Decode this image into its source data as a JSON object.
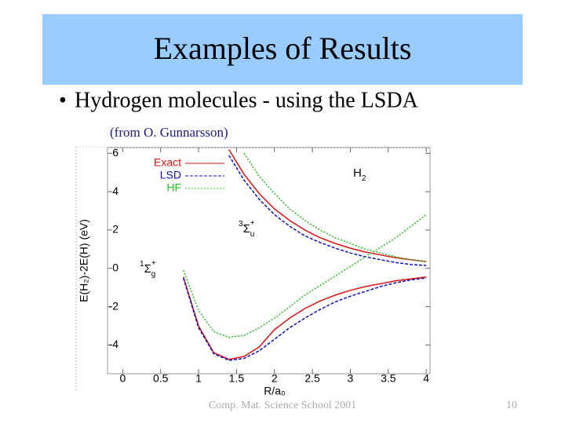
{
  "slide": {
    "title": "Examples of Results",
    "bullet": "•",
    "text": "Hydrogen molecules - using the LSDA",
    "source": "(from O. Gunnarsson)",
    "footer": "Comp. Mat. Science School 2001",
    "page": "10"
  },
  "chart_data": {
    "type": "line",
    "xlabel": "R/a₀",
    "ylabel": "E(H₂)-2E(H) (eV)",
    "annotations": [
      {
        "main": "H",
        "sub": "2"
      },
      {
        "pre": "3",
        "main": "Σ",
        "sub": "u",
        "sup": "+"
      },
      {
        "pre": "1",
        "main": "Σ",
        "sub": "g",
        "sup": "+"
      }
    ],
    "x": [
      0.8,
      1.0,
      1.2,
      1.4,
      1.6,
      1.8,
      2.0,
      2.2,
      2.4,
      2.6,
      2.8,
      3.0,
      3.2,
      3.4,
      3.6,
      3.8,
      4.0
    ],
    "series": [
      {
        "name": "Exact",
        "color": "#e01010",
        "style": "solid",
        "singlet": [
          -0.45,
          -3.0,
          -4.4,
          -4.75,
          -4.6,
          -4.1,
          -3.2,
          -2.6,
          -2.1,
          -1.7,
          -1.4,
          -1.15,
          -0.95,
          -0.8,
          -0.65,
          -0.55,
          -0.45
        ],
        "triplet": [
          null,
          null,
          null,
          6.2,
          4.9,
          3.9,
          3.1,
          2.5,
          2.0,
          1.6,
          1.3,
          1.05,
          0.85,
          0.7,
          0.55,
          0.45,
          0.35
        ]
      },
      {
        "name": "LSD",
        "color": "#1010c0",
        "style": "dashed",
        "singlet": [
          -0.5,
          -3.1,
          -4.45,
          -4.8,
          -4.7,
          -4.3,
          -3.7,
          -3.1,
          -2.6,
          -2.15,
          -1.75,
          -1.45,
          -1.2,
          -0.95,
          -0.75,
          -0.6,
          -0.5
        ],
        "triplet": [
          null,
          null,
          null,
          5.9,
          4.6,
          3.6,
          2.8,
          2.2,
          1.7,
          1.35,
          1.05,
          0.8,
          0.6,
          0.45,
          0.3,
          0.2,
          0.15
        ]
      },
      {
        "name": "HF",
        "color": "#20c020",
        "style": "dotted",
        "singlet": [
          -0.1,
          -2.2,
          -3.3,
          -3.6,
          -3.5,
          -3.1,
          -2.6,
          -2.0,
          -1.4,
          -0.9,
          -0.4,
          0.1,
          0.6,
          1.1,
          1.6,
          2.2,
          2.8
        ],
        "triplet": [
          null,
          null,
          null,
          null,
          6.0,
          4.8,
          3.9,
          3.1,
          2.5,
          2.0,
          1.6,
          1.3,
          1.0,
          0.8,
          0.6,
          0.45,
          0.35
        ]
      }
    ],
    "xlim": [
      -0.2,
      4.05
    ],
    "ylim": [
      -5.5,
      6.3
    ],
    "xticks": [
      0,
      0.5,
      1,
      1.5,
      2,
      2.5,
      3,
      3.5,
      4
    ],
    "yticks": [
      -4,
      -2,
      0,
      2,
      4,
      6
    ]
  }
}
